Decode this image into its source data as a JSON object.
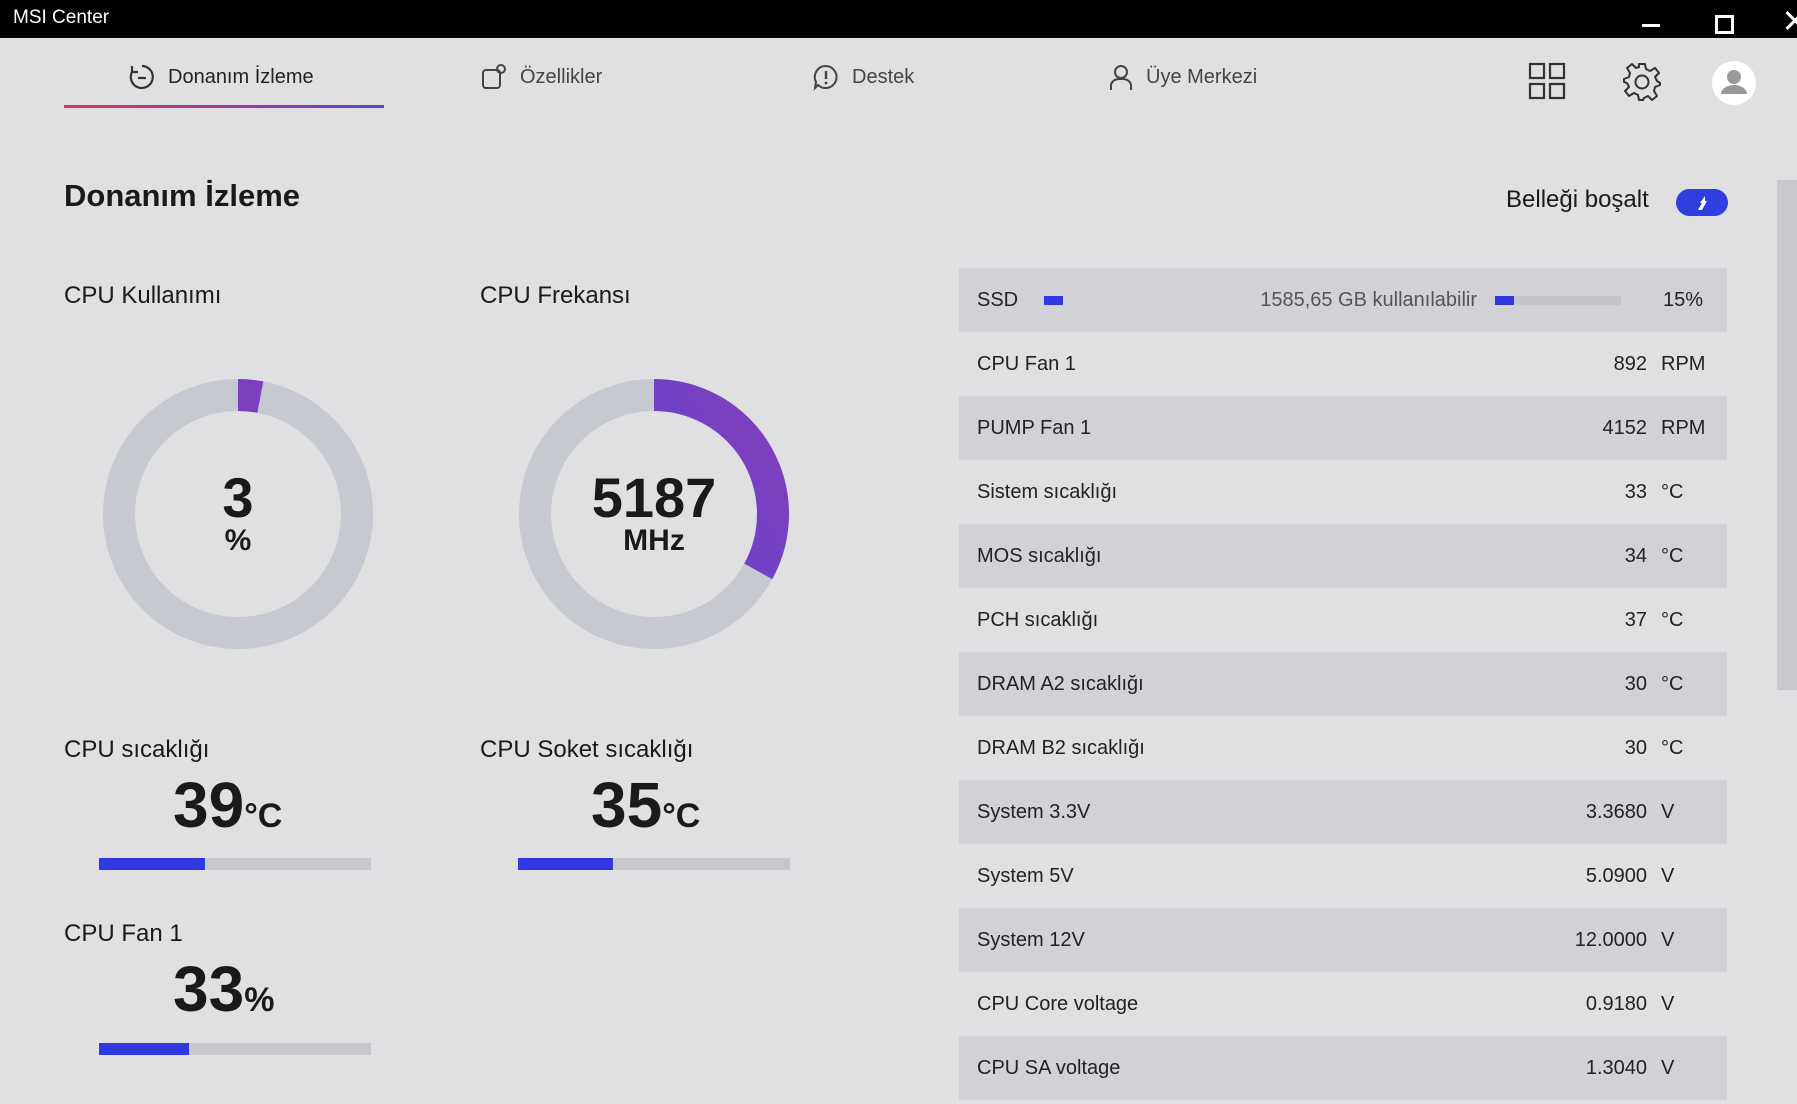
{
  "window": {
    "title": "MSI Center"
  },
  "tabs": [
    {
      "label": "Donanım İzleme",
      "icon": "hardware-monitor-icon",
      "active": true
    },
    {
      "label": "Özellikler",
      "icon": "features-icon",
      "active": false
    },
    {
      "label": "Destek",
      "icon": "support-icon",
      "active": false
    },
    {
      "label": "Üye Merkezi",
      "icon": "member-icon",
      "active": false
    }
  ],
  "page": {
    "title": "Donanım İzleme",
    "release_memory_label": "Belleği boşalt"
  },
  "cpu_usage": {
    "label": "CPU Kullanımı",
    "value": "3",
    "unit": "%",
    "percent": 3
  },
  "cpu_frequency": {
    "label": "CPU Frekansı",
    "value": "5187",
    "unit": "MHz",
    "fraction": 0.33
  },
  "cpu_temp": {
    "label": "CPU sıcaklığı",
    "value": "39",
    "unit": "°C",
    "bar_percent": 39
  },
  "cpu_socket_temp": {
    "label": "CPU Soket sıcaklığı",
    "value": "35",
    "unit": "°C",
    "bar_percent": 35
  },
  "cpu_fan": {
    "label": "CPU Fan 1",
    "value": "33",
    "unit": "%",
    "bar_percent": 33
  },
  "ssd": {
    "name": "SSD",
    "free": "1585,65 GB kullanılabilir",
    "percent": "15%",
    "used_fraction": 0.15
  },
  "sensors": [
    {
      "name": "CPU Fan 1",
      "value": "892",
      "unit": "RPM"
    },
    {
      "name": "PUMP Fan 1",
      "value": "4152",
      "unit": "RPM"
    },
    {
      "name": "Sistem sıcaklığı",
      "value": "33",
      "unit": "°C"
    },
    {
      "name": "MOS sıcaklığı",
      "value": "34",
      "unit": "°C"
    },
    {
      "name": "PCH sıcaklığı",
      "value": "37",
      "unit": "°C"
    },
    {
      "name": "DRAM A2 sıcaklığı",
      "value": "30",
      "unit": "°C"
    },
    {
      "name": "DRAM B2 sıcaklığı",
      "value": "30",
      "unit": "°C"
    },
    {
      "name": "System 3.3V",
      "value": "3.3680",
      "unit": "V"
    },
    {
      "name": "System 5V",
      "value": "5.0900",
      "unit": "V"
    },
    {
      "name": "System 12V",
      "value": "12.0000",
      "unit": "V"
    },
    {
      "name": "CPU Core voltage",
      "value": "0.9180",
      "unit": "V"
    },
    {
      "name": "CPU SA voltage",
      "value": "1.3040",
      "unit": "V"
    }
  ],
  "colors": {
    "accent_blue": "#3038e0",
    "gauge_track": "#c7c9d0",
    "gradient_start": "#e0335c",
    "gradient_end": "#5b45d6"
  }
}
